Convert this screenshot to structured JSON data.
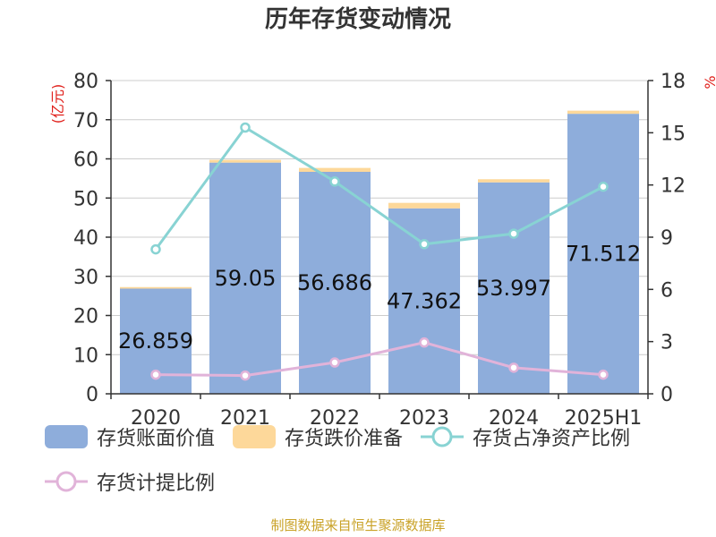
{
  "chart_data": {
    "type": "bar",
    "title": "历年存货变动情况",
    "ylabel_left": "(亿元)",
    "ylabel_right": "%",
    "categories": [
      "2020",
      "2021",
      "2022",
      "2023",
      "2024",
      "2025H1"
    ],
    "ylim_left": [
      0,
      80
    ],
    "yticks_left": [
      0,
      10,
      20,
      30,
      40,
      50,
      60,
      70,
      80
    ],
    "ylim_right": [
      0,
      18
    ],
    "yticks_right": [
      0,
      3,
      6,
      9,
      12,
      15,
      18
    ],
    "stacked": true,
    "grid": true,
    "legend_position": "bottom",
    "series": [
      {
        "name": "存货账面价值",
        "type": "bar",
        "axis": "left",
        "color": "#8eaddb",
        "values": [
          26.859,
          59.05,
          56.686,
          47.362,
          53.997,
          71.512
        ],
        "labels": [
          "26.859",
          "59.05",
          "56.686",
          "47.362",
          "53.997",
          "71.512"
        ]
      },
      {
        "name": "存货跌价准备",
        "type": "bar",
        "axis": "left",
        "color": "#fdd89a",
        "values": [
          0.4,
          0.7,
          1.0,
          1.4,
          0.8,
          0.8
        ]
      },
      {
        "name": "存货占净资产比例",
        "type": "line",
        "axis": "right",
        "color": "#88d3d3",
        "values": [
          8.3,
          15.3,
          12.2,
          8.6,
          9.2,
          11.9
        ]
      },
      {
        "name": "存货计提比例",
        "type": "line",
        "axis": "right",
        "color": "#e1b3d9",
        "values": [
          1.1,
          1.05,
          1.8,
          2.95,
          1.5,
          1.1
        ]
      }
    ],
    "source_note": "制图数据来自恒生聚源数据库"
  }
}
